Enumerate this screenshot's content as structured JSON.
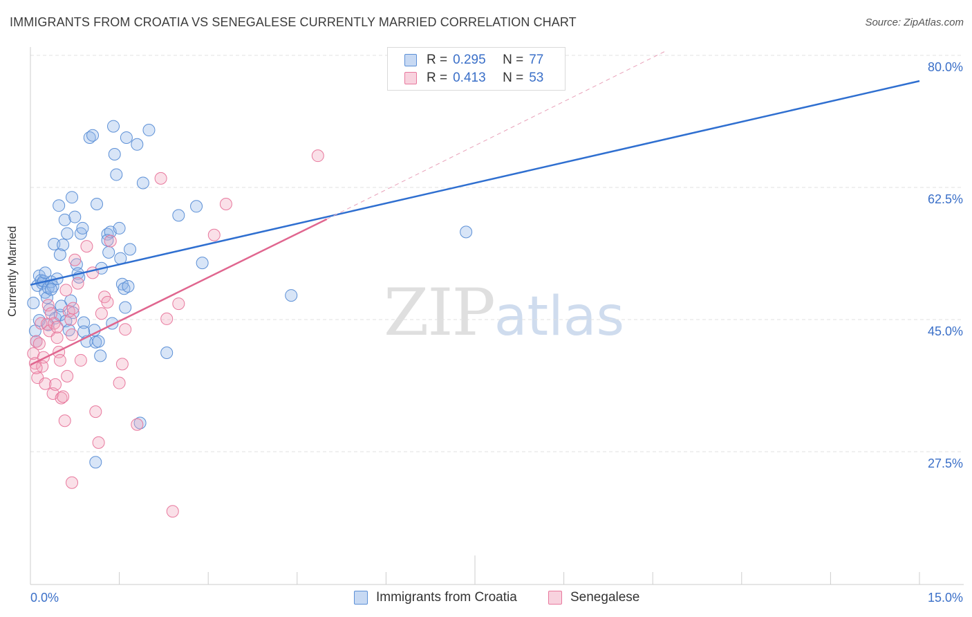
{
  "title": "IMMIGRANTS FROM CROATIA VS SENEGALESE CURRENTLY MARRIED CORRELATION CHART",
  "source": "Source: ZipAtlas.com",
  "watermark": {
    "zip": "ZIP",
    "atlas": "atlas"
  },
  "legend": {
    "rows": [
      {
        "r_label": "R =",
        "r_value": "0.295",
        "n_label": "N =",
        "n_value": "77",
        "color": "#8fb4e8"
      },
      {
        "r_label": "R =",
        "r_value": "0.413",
        "n_label": "N =",
        "n_value": "53",
        "color": "#f2a5bd"
      }
    ]
  },
  "chart_data": {
    "type": "scatter",
    "title": "IMMIGRANTS FROM CROATIA VS SENEGALESE CURRENTLY MARRIED CORRELATION CHART",
    "xlabel": "",
    "ylabel": "Currently Married",
    "xlim": [
      0,
      15
    ],
    "ylim": [
      10,
      82.5
    ],
    "x_tick_labels": [
      "0.0%",
      "15.0%"
    ],
    "y_ticks": [
      27.5,
      45.0,
      62.5,
      80.0
    ],
    "y_tick_labels": [
      "27.5%",
      "45.0%",
      "62.5%",
      "80.0%"
    ],
    "series": [
      {
        "name": "Immigrants from Croatia",
        "color": "#5b8fd6",
        "fill": "rgba(143,180,232,0.35)",
        "points": [
          [
            0.05,
            47.2
          ],
          [
            0.08,
            43.5
          ],
          [
            0.1,
            42.1
          ],
          [
            0.12,
            49.5
          ],
          [
            0.15,
            50.8
          ],
          [
            0.18,
            50.2
          ],
          [
            0.2,
            49.8
          ],
          [
            0.22,
            50.1
          ],
          [
            0.25,
            48.6
          ],
          [
            0.28,
            47.9
          ],
          [
            0.3,
            49.2
          ],
          [
            0.32,
            46.3
          ],
          [
            0.35,
            50.0
          ],
          [
            0.38,
            49.4
          ],
          [
            0.4,
            55.0
          ],
          [
            0.42,
            45.2
          ],
          [
            0.45,
            50.4
          ],
          [
            0.48,
            60.1
          ],
          [
            0.5,
            45.6
          ],
          [
            0.52,
            46.8
          ],
          [
            0.55,
            54.9
          ],
          [
            0.58,
            58.2
          ],
          [
            0.6,
            44.8
          ],
          [
            0.62,
            56.4
          ],
          [
            0.65,
            43.6
          ],
          [
            0.68,
            47.5
          ],
          [
            0.7,
            61.2
          ],
          [
            0.72,
            45.9
          ],
          [
            0.75,
            58.6
          ],
          [
            0.78,
            52.3
          ],
          [
            0.8,
            51.1
          ],
          [
            0.82,
            50.6
          ],
          [
            0.85,
            56.4
          ],
          [
            0.88,
            57.1
          ],
          [
            0.9,
            44.6
          ],
          [
            0.95,
            42.1
          ],
          [
            1.0,
            69.1
          ],
          [
            1.05,
            69.4
          ],
          [
            1.08,
            43.6
          ],
          [
            1.1,
            42.0
          ],
          [
            1.12,
            60.3
          ],
          [
            1.15,
            42.1
          ],
          [
            1.18,
            40.2
          ],
          [
            1.2,
            51.8
          ],
          [
            1.3,
            56.3
          ],
          [
            1.32,
            53.9
          ],
          [
            1.35,
            56.6
          ],
          [
            1.38,
            44.5
          ],
          [
            1.4,
            70.6
          ],
          [
            1.42,
            66.9
          ],
          [
            1.45,
            64.2
          ],
          [
            1.5,
            57.1
          ],
          [
            1.52,
            53.1
          ],
          [
            1.55,
            49.7
          ],
          [
            1.58,
            49.1
          ],
          [
            1.6,
            46.6
          ],
          [
            1.62,
            69.1
          ],
          [
            1.65,
            49.4
          ],
          [
            1.68,
            54.3
          ],
          [
            1.8,
            68.2
          ],
          [
            1.85,
            31.3
          ],
          [
            1.9,
            63.1
          ],
          [
            2.0,
            70.1
          ],
          [
            2.3,
            40.6
          ],
          [
            2.5,
            58.8
          ],
          [
            2.8,
            60.0
          ],
          [
            2.9,
            52.5
          ],
          [
            4.4,
            48.2
          ],
          [
            7.35,
            56.6
          ],
          [
            1.1,
            26.1
          ],
          [
            0.3,
            44.3
          ],
          [
            0.15,
            44.9
          ],
          [
            0.9,
            43.4
          ],
          [
            0.5,
            53.6
          ],
          [
            1.3,
            55.5
          ],
          [
            0.25,
            51.2
          ],
          [
            0.35,
            49.0
          ]
        ]
      },
      {
        "name": "Senegalese",
        "color": "#e8789d",
        "fill": "rgba(242,165,189,0.35)",
        "points": [
          [
            0.05,
            40.5
          ],
          [
            0.08,
            39.2
          ],
          [
            0.1,
            42.1
          ],
          [
            0.12,
            37.3
          ],
          [
            0.15,
            41.8
          ],
          [
            0.18,
            44.5
          ],
          [
            0.2,
            38.8
          ],
          [
            0.22,
            40.0
          ],
          [
            0.25,
            36.5
          ],
          [
            0.28,
            44.4
          ],
          [
            0.3,
            46.9
          ],
          [
            0.32,
            43.5
          ],
          [
            0.35,
            45.8
          ],
          [
            0.38,
            35.2
          ],
          [
            0.4,
            44.5
          ],
          [
            0.42,
            36.4
          ],
          [
            0.45,
            42.6
          ],
          [
            0.48,
            40.7
          ],
          [
            0.5,
            39.6
          ],
          [
            0.52,
            34.6
          ],
          [
            0.55,
            34.8
          ],
          [
            0.58,
            31.6
          ],
          [
            0.6,
            48.9
          ],
          [
            0.62,
            37.5
          ],
          [
            0.65,
            46.1
          ],
          [
            0.68,
            45.0
          ],
          [
            0.7,
            43.0
          ],
          [
            0.72,
            46.5
          ],
          [
            0.75,
            52.9
          ],
          [
            0.8,
            49.8
          ],
          [
            0.85,
            39.6
          ],
          [
            0.95,
            54.7
          ],
          [
            1.05,
            51.2
          ],
          [
            1.1,
            32.8
          ],
          [
            1.15,
            28.7
          ],
          [
            1.2,
            45.8
          ],
          [
            1.25,
            48.0
          ],
          [
            1.3,
            47.3
          ],
          [
            1.35,
            55.4
          ],
          [
            1.5,
            36.6
          ],
          [
            1.55,
            39.1
          ],
          [
            1.6,
            43.7
          ],
          [
            1.8,
            31.1
          ],
          [
            2.2,
            63.7
          ],
          [
            2.3,
            45.1
          ],
          [
            2.4,
            19.6
          ],
          [
            2.5,
            47.1
          ],
          [
            3.1,
            56.2
          ],
          [
            3.3,
            60.3
          ],
          [
            4.85,
            66.7
          ],
          [
            0.7,
            23.4
          ],
          [
            0.1,
            38.6
          ],
          [
            0.45,
            44.0
          ]
        ]
      }
    ],
    "trend_lines": [
      {
        "series": "Immigrants from Croatia",
        "x": [
          0.0,
          15.0
        ],
        "y": [
          49.6,
          76.6
        ]
      },
      {
        "series": "Senegalese",
        "x": [
          0.0,
          5.0
        ],
        "y": [
          39.0,
          58.3
        ]
      },
      {
        "series": "Senegalese (extrapolated)",
        "x": [
          5.0,
          10.7
        ],
        "y": [
          58.3,
          80.5
        ]
      }
    ]
  },
  "bottom_legend": [
    {
      "label": "Immigrants from Croatia",
      "color": "#8fb4e8"
    },
    {
      "label": "Senegalese",
      "color": "#f2a5bd"
    }
  ]
}
